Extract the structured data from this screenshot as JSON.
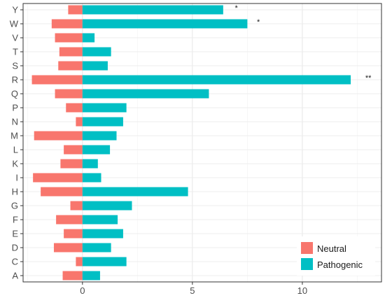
{
  "chart_data": {
    "type": "bar",
    "orientation": "horizontal",
    "categories": [
      "A",
      "C",
      "D",
      "E",
      "F",
      "G",
      "H",
      "I",
      "K",
      "L",
      "M",
      "N",
      "P",
      "Q",
      "R",
      "S",
      "T",
      "V",
      "W",
      "Y"
    ],
    "series": [
      {
        "name": "Neutral",
        "color": "#F8766D",
        "values": [
          -0.9,
          -0.3,
          -1.3,
          -0.85,
          -1.2,
          -0.55,
          -1.9,
          -2.25,
          -1.0,
          -0.85,
          -2.2,
          -0.3,
          -0.75,
          -1.25,
          -2.3,
          -1.1,
          -1.05,
          -1.25,
          -1.4,
          -0.65
        ]
      },
      {
        "name": "Pathogenic",
        "color": "#00BFC4",
        "values": [
          0.8,
          2.0,
          1.3,
          1.85,
          1.6,
          2.25,
          4.8,
          0.85,
          0.7,
          1.25,
          1.55,
          1.85,
          2.0,
          5.75,
          12.2,
          1.15,
          1.3,
          0.55,
          7.5,
          6.4
        ]
      }
    ],
    "annotations": [
      {
        "category": "Y",
        "text": "*",
        "x": 7.0
      },
      {
        "category": "W",
        "text": "*",
        "x": 8.0
      },
      {
        "category": "R",
        "text": "**",
        "x": 13.0
      }
    ],
    "xlim": [
      -2.7,
      13.6
    ],
    "xticks": [
      0,
      5,
      10
    ],
    "xtick_labels": [
      "0",
      "5",
      "10"
    ],
    "grid": true,
    "legend_position": "bottom-right",
    "title": "",
    "xlabel": "",
    "ylabel": ""
  }
}
